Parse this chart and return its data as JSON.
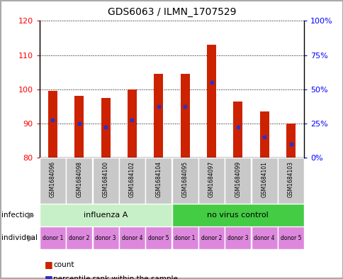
{
  "title": "GDS6063 / ILMN_1707529",
  "samples": [
    "GSM1684096",
    "GSM1684098",
    "GSM1684100",
    "GSM1684102",
    "GSM1684104",
    "GSM1684095",
    "GSM1684097",
    "GSM1684099",
    "GSM1684101",
    "GSM1684103"
  ],
  "bar_bottoms": [
    80,
    80,
    80,
    80,
    80,
    80,
    80,
    80,
    80,
    80
  ],
  "bar_tops": [
    99.5,
    98.0,
    97.5,
    100.0,
    104.5,
    104.5,
    113.0,
    96.5,
    93.5,
    90.0
  ],
  "percentile_values": [
    91,
    90,
    89,
    91,
    95,
    95,
    102,
    89,
    86,
    84
  ],
  "ylim_left": [
    80,
    120
  ],
  "ylim_right": [
    0,
    100
  ],
  "yticks_left": [
    80,
    90,
    100,
    110,
    120
  ],
  "yticks_right": [
    0,
    25,
    50,
    75,
    100
  ],
  "ytick_labels_right": [
    "0%",
    "25%",
    "50%",
    "75%",
    "100%"
  ],
  "infection_groups": [
    {
      "label": "influenza A",
      "start": 0,
      "end": 5,
      "color": "#c8f0c8"
    },
    {
      "label": "no virus control",
      "start": 5,
      "end": 10,
      "color": "#44cc44"
    }
  ],
  "individual_labels": [
    "donor 1",
    "donor 2",
    "donor 3",
    "donor 4",
    "donor 5",
    "donor 1",
    "donor 2",
    "donor 3",
    "donor 4",
    "donor 5"
  ],
  "individual_color": "#dd88dd",
  "bar_color": "#cc2200",
  "percentile_color": "#2233cc",
  "grid_color": "#000000",
  "bg_color": "#ffffff",
  "tick_label_bg": "#c8c8c8",
  "legend_count_color": "#cc2200",
  "legend_percentile_color": "#2233cc",
  "figure_border_color": "#aaaaaa"
}
